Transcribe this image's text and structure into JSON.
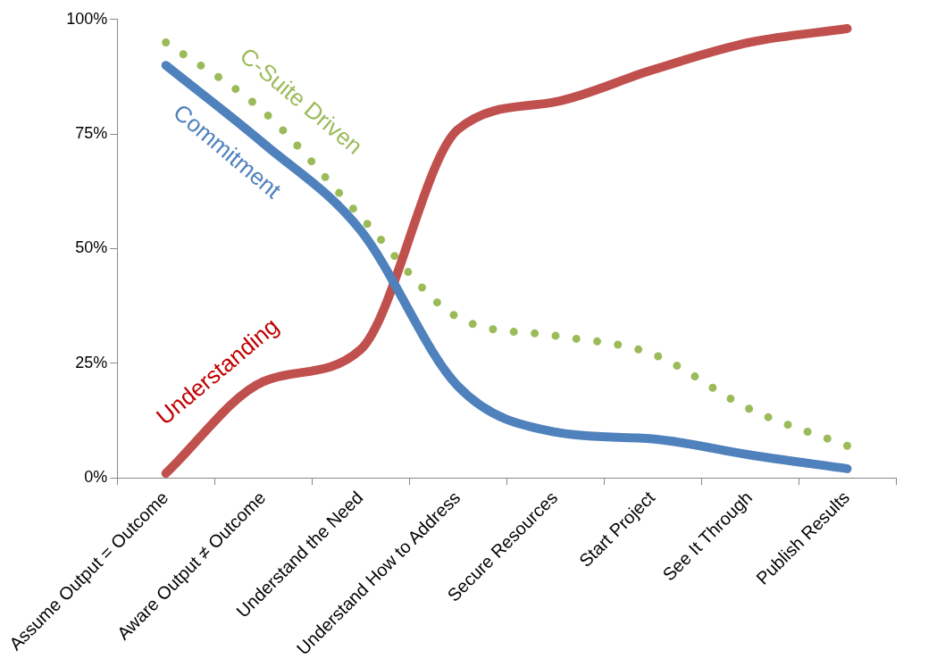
{
  "chart_data": {
    "type": "line",
    "categories": [
      "Assume Output = Outcome",
      "Aware Output ≠ Outcome",
      "Understand the Need",
      "Understand How to Address",
      "Secure Resources",
      "Start Project",
      "See It Through",
      "Publish Results"
    ],
    "series": [
      {
        "name": "Commitment",
        "color": "#4f81bd",
        "line_style": "solid",
        "values": [
          90,
          73,
          54,
          20,
          10,
          8.5,
          5,
          2
        ]
      },
      {
        "name": "Understanding",
        "color": "#c0504d",
        "line_style": "solid",
        "values": [
          1,
          21,
          28,
          76,
          82,
          89,
          95,
          98
        ]
      },
      {
        "name": "C-Suite Driven",
        "color": "#9bbb59",
        "line_style": "dotted",
        "values": [
          95,
          80,
          57,
          35,
          31,
          27,
          15,
          7
        ]
      }
    ],
    "ylim": [
      0,
      100
    ],
    "yticks": [
      {
        "value": 0,
        "label": "0%"
      },
      {
        "value": 25,
        "label": "25%"
      },
      {
        "value": 50,
        "label": "50%"
      },
      {
        "value": 75,
        "label": "75%"
      },
      {
        "value": 100,
        "label": "100%"
      }
    ],
    "grid": false,
    "legend": false,
    "marker": "none"
  }
}
